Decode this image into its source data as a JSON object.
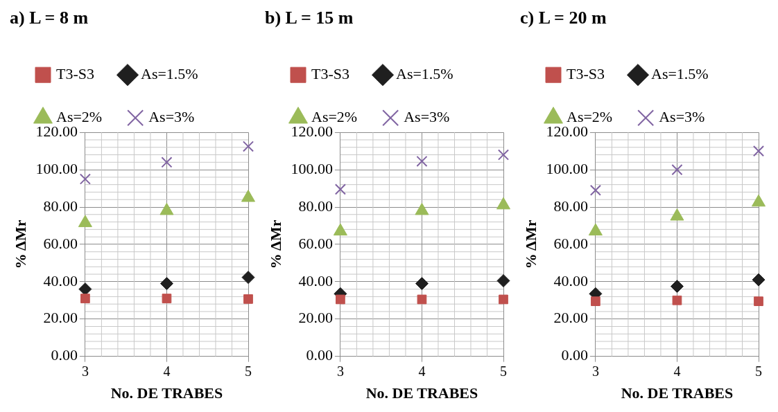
{
  "chart_data": [
    {
      "type": "scatter",
      "title": "a) L = 8 m",
      "xlabel": "No. DE TRABES",
      "ylabel": "% ΔMr",
      "x": [
        3,
        4,
        5
      ],
      "xlim": [
        3,
        5
      ],
      "xticks": [
        3,
        4,
        5
      ],
      "ylim": [
        0,
        120
      ],
      "yticks": [
        {
          "value": 0,
          "label": "0.00"
        },
        {
          "value": 20,
          "label": "20.00"
        },
        {
          "value": 40,
          "label": "40.00"
        },
        {
          "value": 60,
          "label": "60.00"
        },
        {
          "value": 80,
          "label": "80.00"
        },
        {
          "value": 100,
          "label": "100.00"
        },
        {
          "value": 120,
          "label": "120.00"
        }
      ],
      "grid": true,
      "legend": "top left",
      "series": [
        {
          "name": "T3-S3",
          "color": "#c0504d",
          "marker": "square",
          "values": [
            31,
            31,
            30.7
          ]
        },
        {
          "name": "As=1.5%",
          "color": "#1f1f1f",
          "marker": "diamond",
          "values": [
            36,
            39,
            42.3
          ]
        },
        {
          "name": "As=2%",
          "color": "#9bbb59",
          "marker": "triangle",
          "values": [
            71.5,
            78,
            85
          ]
        },
        {
          "name": "As=3%",
          "color": "#8064a2",
          "marker": "cross",
          "values": [
            95,
            104,
            112.5
          ]
        }
      ]
    },
    {
      "type": "scatter",
      "title": "b) L = 15 m",
      "xlabel": "No. DE TRABES",
      "ylabel": "% ΔMr",
      "x": [
        3,
        4,
        5
      ],
      "xlim": [
        3,
        5
      ],
      "xticks": [
        3,
        4,
        5
      ],
      "ylim": [
        0,
        120
      ],
      "yticks": [
        {
          "value": 0,
          "label": "0.00"
        },
        {
          "value": 20,
          "label": "20.00"
        },
        {
          "value": 40,
          "label": "40.00"
        },
        {
          "value": 60,
          "label": "60.00"
        },
        {
          "value": 80,
          "label": "80.00"
        },
        {
          "value": 100,
          "label": "100.00"
        },
        {
          "value": 120,
          "label": "120.00"
        }
      ],
      "grid": true,
      "legend": "top left",
      "series": [
        {
          "name": "T3-S3",
          "color": "#c0504d",
          "marker": "square",
          "values": [
            30.5,
            30.5,
            30.5
          ]
        },
        {
          "name": "As=1.5%",
          "color": "#1f1f1f",
          "marker": "diamond",
          "values": [
            33.5,
            39,
            40.5
          ]
        },
        {
          "name": "As=2%",
          "color": "#9bbb59",
          "marker": "triangle",
          "values": [
            67,
            78,
            81
          ]
        },
        {
          "name": "As=3%",
          "color": "#8064a2",
          "marker": "cross",
          "values": [
            89.5,
            104.5,
            108
          ]
        }
      ]
    },
    {
      "type": "scatter",
      "title": "c) L = 20 m",
      "xlabel": "No. DE TRABES",
      "ylabel": "% ΔMr",
      "x": [
        3,
        4,
        5
      ],
      "xlim": [
        3,
        5
      ],
      "xticks": [
        3,
        4,
        5
      ],
      "ylim": [
        0,
        120
      ],
      "yticks": [
        {
          "value": 0,
          "label": "0.00"
        },
        {
          "value": 20,
          "label": "20.00"
        },
        {
          "value": 40,
          "label": "40.00"
        },
        {
          "value": 60,
          "label": "60.00"
        },
        {
          "value": 80,
          "label": "80.00"
        },
        {
          "value": 100,
          "label": "100.00"
        },
        {
          "value": 120,
          "label": "120.00"
        }
      ],
      "grid": true,
      "legend": "top left",
      "series": [
        {
          "name": "T3-S3",
          "color": "#c0504d",
          "marker": "square",
          "values": [
            29.5,
            30,
            29.5
          ]
        },
        {
          "name": "As=1.5%",
          "color": "#1f1f1f",
          "marker": "diamond",
          "values": [
            33.5,
            37.5,
            41
          ]
        },
        {
          "name": "As=2%",
          "color": "#9bbb59",
          "marker": "triangle",
          "values": [
            67,
            75,
            82.5
          ]
        },
        {
          "name": "As=3%",
          "color": "#8064a2",
          "marker": "cross",
          "values": [
            89,
            100,
            110
          ]
        }
      ]
    }
  ]
}
